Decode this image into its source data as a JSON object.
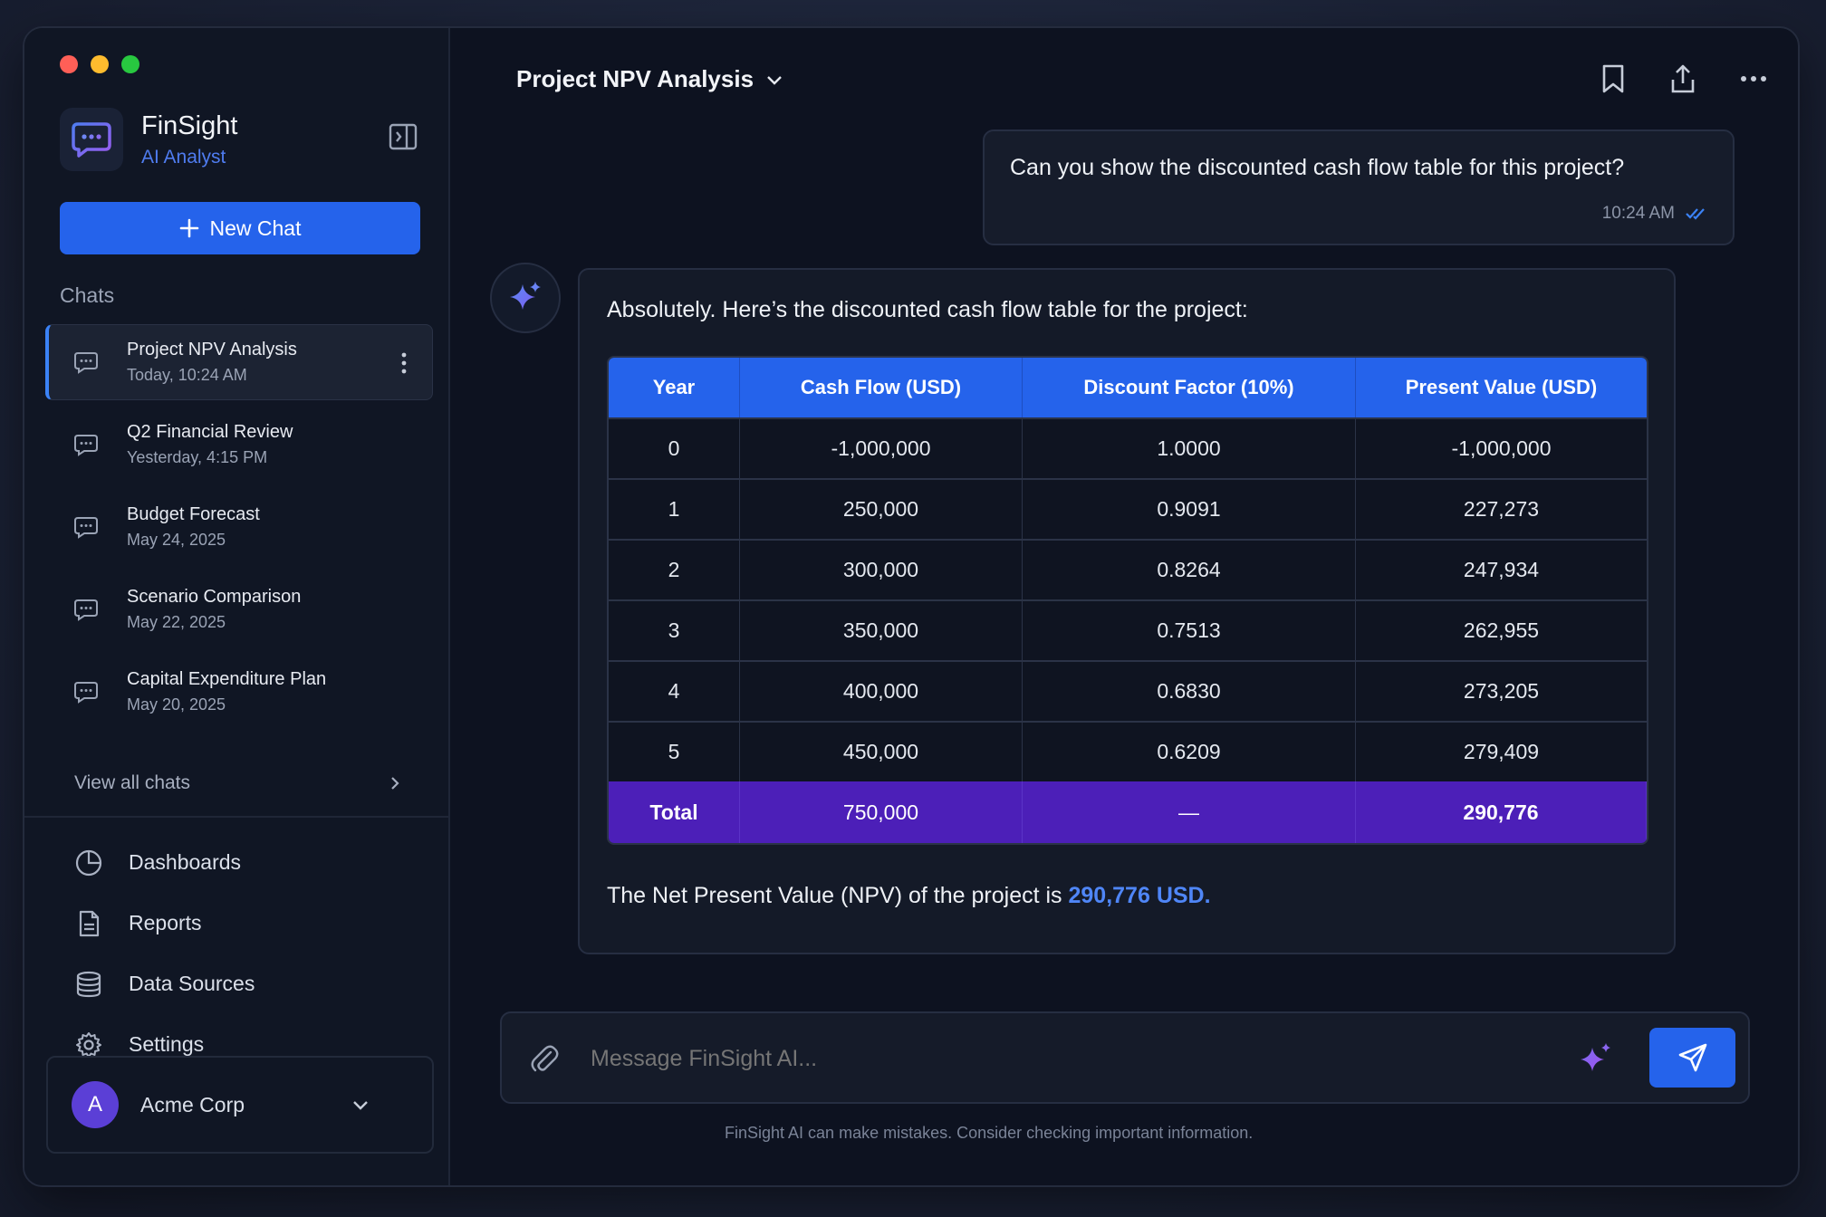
{
  "app": {
    "name": "FinSight",
    "subtitle": "AI Analyst"
  },
  "sidebar": {
    "new_chat_label": "New Chat",
    "chats_label": "Chats",
    "chats": [
      {
        "title": "Project NPV Analysis",
        "time": "Today, 10:24 AM",
        "active": true
      },
      {
        "title": "Q2 Financial Review",
        "time": "Yesterday, 4:15 PM"
      },
      {
        "title": "Budget Forecast",
        "time": "May 24, 2025"
      },
      {
        "title": "Scenario Comparison",
        "time": "May 22, 2025"
      },
      {
        "title": "Capital Expenditure Plan",
        "time": "May 20, 2025"
      }
    ],
    "view_all_label": "View all chats",
    "nav": [
      {
        "label": "Dashboards",
        "icon": "pie-chart-icon"
      },
      {
        "label": "Reports",
        "icon": "document-icon"
      },
      {
        "label": "Data Sources",
        "icon": "database-icon"
      },
      {
        "label": "Settings",
        "icon": "gear-icon"
      }
    ],
    "org": {
      "initial": "A",
      "name": "Acme Corp"
    }
  },
  "header": {
    "title": "Project NPV Analysis"
  },
  "conversation": {
    "user_message": {
      "text": "Can you show the discounted cash flow table for this project?",
      "time": "10:24 AM"
    },
    "ai_message": {
      "intro": "Absolutely. Here’s the discounted cash flow table for the project:",
      "table": {
        "headers": [
          "Year",
          "Cash Flow (USD)",
          "Discount Factor (10%)",
          "Present Value (USD)"
        ],
        "rows": [
          [
            "0",
            "-1,000,000",
            "1.0000",
            "-1,000,000"
          ],
          [
            "1",
            "250,000",
            "0.9091",
            "227,273"
          ],
          [
            "2",
            "300,000",
            "0.8264",
            "247,934"
          ],
          [
            "3",
            "350,000",
            "0.7513",
            "262,955"
          ],
          [
            "4",
            "400,000",
            "0.6830",
            "273,205"
          ],
          [
            "5",
            "450,000",
            "0.6209",
            "279,409"
          ]
        ],
        "total": [
          "Total",
          "750,000",
          "—",
          "290,776"
        ]
      },
      "npv_prefix": "The Net Present Value (NPV) of the project is ",
      "npv_value": "290,776 USD."
    }
  },
  "composer": {
    "placeholder": "Message FinSight AI..."
  },
  "disclaimer": "FinSight AI can make mistakes. Consider checking important information.",
  "colors": {
    "accent": "#2563eb",
    "total_row": "#4c1fb8",
    "npv_highlight": "#4f86f7",
    "traffic_red": "#ff5f57",
    "traffic_yellow": "#febc2e",
    "traffic_green": "#28c840"
  }
}
